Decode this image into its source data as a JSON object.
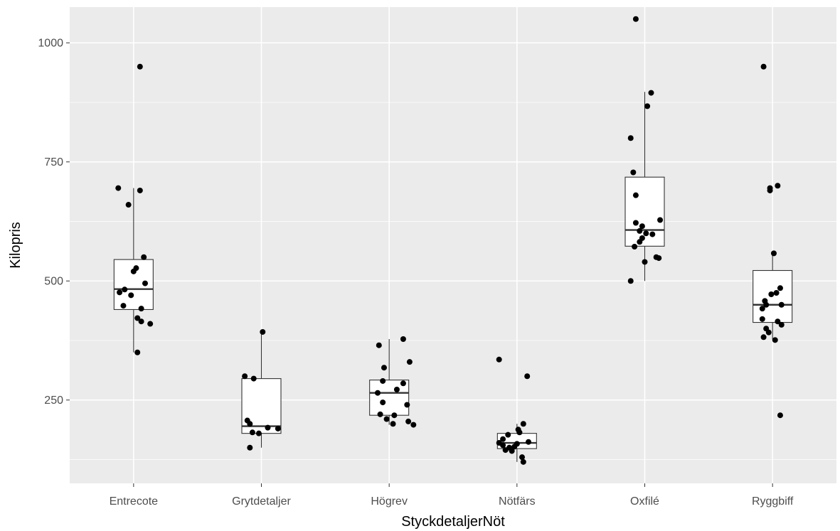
{
  "chart_data": {
    "type": "boxplot",
    "xlabel": "StyckdetaljerNöt",
    "ylabel": "Kilopris",
    "ylim": [
      75,
      1075
    ],
    "yticks": [
      250,
      500,
      750,
      1000
    ],
    "grid": true,
    "legend": "none",
    "colors": {
      "panel_background": "#ebebeb",
      "grid": "#ffffff",
      "box_fill": "#ffffff",
      "box_line": "#333333",
      "point": "#000000",
      "tick_text": "#4d4d4d"
    },
    "categories": [
      "Entrecote",
      "Grytdetaljer",
      "Högrev",
      "Nötfärs",
      "Oxfilé",
      "Ryggbiff"
    ],
    "boxes": [
      {
        "category": "Entrecote",
        "lower_whisker": 350,
        "q1": 440,
        "median": 483,
        "q3": 545,
        "upper_whisker": 695
      },
      {
        "category": "Grytdetaljer",
        "lower_whisker": 150,
        "q1": 180,
        "median": 195,
        "q3": 295,
        "upper_whisker": 395
      },
      {
        "category": "Högrev",
        "lower_whisker": 198,
        "q1": 218,
        "median": 265,
        "q3": 292,
        "upper_whisker": 378
      },
      {
        "category": "Nötfärs",
        "lower_whisker": 120,
        "q1": 148,
        "median": 160,
        "q3": 180,
        "upper_whisker": 200
      },
      {
        "category": "Oxfilé",
        "lower_whisker": 500,
        "q1": 573,
        "median": 607,
        "q3": 718,
        "upper_whisker": 897
      },
      {
        "category": "Ryggbiff",
        "lower_whisker": 378,
        "q1": 413,
        "median": 450,
        "q3": 522,
        "upper_whisker": 560
      }
    ],
    "points": [
      {
        "category": "Entrecote",
        "values": [
          {
            "jitter": 0.05,
            "y": 950
          },
          {
            "jitter": -0.12,
            "y": 695
          },
          {
            "jitter": 0.05,
            "y": 690
          },
          {
            "jitter": -0.04,
            "y": 660
          },
          {
            "jitter": 0.08,
            "y": 550
          },
          {
            "jitter": 0.02,
            "y": 527
          },
          {
            "jitter": 0.0,
            "y": 520
          },
          {
            "jitter": 0.09,
            "y": 495
          },
          {
            "jitter": -0.07,
            "y": 482
          },
          {
            "jitter": -0.11,
            "y": 476
          },
          {
            "jitter": -0.02,
            "y": 470
          },
          {
            "jitter": -0.08,
            "y": 448
          },
          {
            "jitter": 0.06,
            "y": 442
          },
          {
            "jitter": 0.03,
            "y": 422
          },
          {
            "jitter": 0.06,
            "y": 415
          },
          {
            "jitter": 0.13,
            "y": 410
          },
          {
            "jitter": 0.03,
            "y": 350
          }
        ]
      },
      {
        "category": "Grytdetaljer",
        "values": [
          {
            "jitter": 0.01,
            "y": 393
          },
          {
            "jitter": -0.13,
            "y": 300
          },
          {
            "jitter": -0.06,
            "y": 295
          },
          {
            "jitter": -0.11,
            "y": 207
          },
          {
            "jitter": -0.09,
            "y": 200
          },
          {
            "jitter": 0.05,
            "y": 192
          },
          {
            "jitter": 0.13,
            "y": 190
          },
          {
            "jitter": -0.07,
            "y": 182
          },
          {
            "jitter": -0.02,
            "y": 180
          },
          {
            "jitter": -0.09,
            "y": 150
          }
        ]
      },
      {
        "category": "Högrev",
        "values": [
          {
            "jitter": 0.11,
            "y": 378
          },
          {
            "jitter": -0.08,
            "y": 365
          },
          {
            "jitter": 0.16,
            "y": 330
          },
          {
            "jitter": -0.04,
            "y": 318
          },
          {
            "jitter": -0.05,
            "y": 290
          },
          {
            "jitter": 0.11,
            "y": 285
          },
          {
            "jitter": 0.06,
            "y": 272
          },
          {
            "jitter": -0.09,
            "y": 265
          },
          {
            "jitter": -0.05,
            "y": 245
          },
          {
            "jitter": 0.14,
            "y": 240
          },
          {
            "jitter": -0.07,
            "y": 220
          },
          {
            "jitter": 0.04,
            "y": 218
          },
          {
            "jitter": -0.02,
            "y": 210
          },
          {
            "jitter": 0.15,
            "y": 205
          },
          {
            "jitter": 0.03,
            "y": 200
          },
          {
            "jitter": 0.19,
            "y": 198
          }
        ]
      },
      {
        "category": "Nötfärs",
        "values": [
          {
            "jitter": -0.14,
            "y": 335
          },
          {
            "jitter": 0.08,
            "y": 300
          },
          {
            "jitter": 0.05,
            "y": 200
          },
          {
            "jitter": 0.01,
            "y": 188
          },
          {
            "jitter": 0.02,
            "y": 182
          },
          {
            "jitter": -0.07,
            "y": 177
          },
          {
            "jitter": -0.11,
            "y": 168
          },
          {
            "jitter": 0.09,
            "y": 162
          },
          {
            "jitter": -0.14,
            "y": 160
          },
          {
            "jitter": 0.0,
            "y": 158
          },
          {
            "jitter": -0.11,
            "y": 155
          },
          {
            "jitter": -0.02,
            "y": 152
          },
          {
            "jitter": -0.06,
            "y": 150
          },
          {
            "jitter": -0.09,
            "y": 145
          },
          {
            "jitter": -0.04,
            "y": 143
          },
          {
            "jitter": 0.04,
            "y": 130
          },
          {
            "jitter": 0.05,
            "y": 120
          }
        ]
      },
      {
        "category": "Oxfilé",
        "values": [
          {
            "jitter": -0.07,
            "y": 1050
          },
          {
            "jitter": 0.05,
            "y": 895
          },
          {
            "jitter": 0.02,
            "y": 867
          },
          {
            "jitter": -0.11,
            "y": 800
          },
          {
            "jitter": -0.09,
            "y": 728
          },
          {
            "jitter": -0.07,
            "y": 680
          },
          {
            "jitter": 0.12,
            "y": 628
          },
          {
            "jitter": -0.07,
            "y": 622
          },
          {
            "jitter": -0.02,
            "y": 615
          },
          {
            "jitter": -0.04,
            "y": 605
          },
          {
            "jitter": 0.01,
            "y": 600
          },
          {
            "jitter": 0.06,
            "y": 598
          },
          {
            "jitter": -0.02,
            "y": 590
          },
          {
            "jitter": -0.04,
            "y": 582
          },
          {
            "jitter": -0.08,
            "y": 572
          },
          {
            "jitter": 0.09,
            "y": 550
          },
          {
            "jitter": 0.11,
            "y": 548
          },
          {
            "jitter": 0.0,
            "y": 540
          },
          {
            "jitter": -0.11,
            "y": 500
          }
        ]
      },
      {
        "category": "Ryggbiff",
        "values": [
          {
            "jitter": -0.07,
            "y": 950
          },
          {
            "jitter": 0.04,
            "y": 700
          },
          {
            "jitter": -0.02,
            "y": 695
          },
          {
            "jitter": -0.02,
            "y": 690
          },
          {
            "jitter": 0.01,
            "y": 558
          },
          {
            "jitter": 0.06,
            "y": 485
          },
          {
            "jitter": 0.03,
            "y": 475
          },
          {
            "jitter": -0.01,
            "y": 472
          },
          {
            "jitter": -0.06,
            "y": 458
          },
          {
            "jitter": -0.05,
            "y": 450
          },
          {
            "jitter": 0.07,
            "y": 450
          },
          {
            "jitter": -0.08,
            "y": 442
          },
          {
            "jitter": -0.08,
            "y": 420
          },
          {
            "jitter": 0.04,
            "y": 415
          },
          {
            "jitter": 0.07,
            "y": 408
          },
          {
            "jitter": -0.05,
            "y": 400
          },
          {
            "jitter": -0.03,
            "y": 392
          },
          {
            "jitter": -0.07,
            "y": 382
          },
          {
            "jitter": 0.02,
            "y": 376
          },
          {
            "jitter": 0.06,
            "y": 218
          }
        ]
      }
    ]
  }
}
